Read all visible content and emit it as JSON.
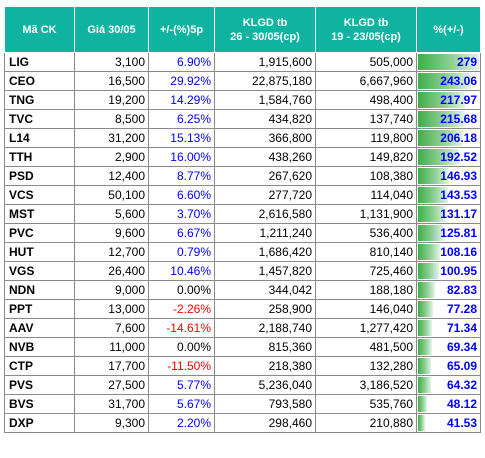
{
  "headers": {
    "code": "Mã CK",
    "price": "Giá 30/05",
    "change": "+/-(%)5p",
    "vol1_line1": "KLGD tb",
    "vol1_line2": "26 - 30/05(cp)",
    "vol2_line1": "KLGD tb",
    "vol2_line2": "19 - 23/05(cp)",
    "ratio": "%(+/-)"
  },
  "colors": {
    "header_bg": "#0fb4a1",
    "positive": "#0000ff",
    "negative": "#ff0000",
    "bar": "#3fae48"
  },
  "bar_max": 279,
  "rows": [
    {
      "code": "LIG",
      "price": "3,100",
      "change": "6.90%",
      "sign": "pos",
      "vol1": "1,915,600",
      "vol2": "505,000",
      "ratio": "279",
      "ratio_value": 279
    },
    {
      "code": "CEO",
      "price": "16,500",
      "change": "29.92%",
      "sign": "pos",
      "vol1": "22,875,180",
      "vol2": "6,667,960",
      "ratio": "243.06",
      "ratio_value": 243.06
    },
    {
      "code": "TNG",
      "price": "19,200",
      "change": "14.29%",
      "sign": "pos",
      "vol1": "1,584,760",
      "vol2": "498,400",
      "ratio": "217.97",
      "ratio_value": 217.97
    },
    {
      "code": "TVC",
      "price": "8,500",
      "change": "6.25%",
      "sign": "pos",
      "vol1": "434,820",
      "vol2": "137,740",
      "ratio": "215.68",
      "ratio_value": 215.68
    },
    {
      "code": "L14",
      "price": "31,200",
      "change": "15.13%",
      "sign": "pos",
      "vol1": "366,800",
      "vol2": "119,800",
      "ratio": "206.18",
      "ratio_value": 206.18
    },
    {
      "code": "TTH",
      "price": "2,900",
      "change": "16.00%",
      "sign": "pos",
      "vol1": "438,260",
      "vol2": "149,820",
      "ratio": "192.52",
      "ratio_value": 192.52
    },
    {
      "code": "PSD",
      "price": "12,400",
      "change": "8.77%",
      "sign": "pos",
      "vol1": "267,620",
      "vol2": "108,380",
      "ratio": "146.93",
      "ratio_value": 146.93
    },
    {
      "code": "VCS",
      "price": "50,100",
      "change": "6.60%",
      "sign": "pos",
      "vol1": "277,720",
      "vol2": "114,040",
      "ratio": "143.53",
      "ratio_value": 143.53
    },
    {
      "code": "MST",
      "price": "5,600",
      "change": "3.70%",
      "sign": "pos",
      "vol1": "2,616,580",
      "vol2": "1,131,900",
      "ratio": "131.17",
      "ratio_value": 131.17
    },
    {
      "code": "PVC",
      "price": "9,600",
      "change": "6.67%",
      "sign": "pos",
      "vol1": "1,211,240",
      "vol2": "536,400",
      "ratio": "125.81",
      "ratio_value": 125.81
    },
    {
      "code": "HUT",
      "price": "12,700",
      "change": "0.79%",
      "sign": "pos",
      "vol1": "1,686,420",
      "vol2": "810,140",
      "ratio": "108.16",
      "ratio_value": 108.16
    },
    {
      "code": "VGS",
      "price": "26,400",
      "change": "10.46%",
      "sign": "pos",
      "vol1": "1,457,820",
      "vol2": "725,460",
      "ratio": "100.95",
      "ratio_value": 100.95
    },
    {
      "code": "NDN",
      "price": "9,000",
      "change": "0.00%",
      "sign": "zero",
      "vol1": "344,042",
      "vol2": "188,180",
      "ratio": "82.83",
      "ratio_value": 82.83
    },
    {
      "code": "PPT",
      "price": "13,000",
      "change": "-2.26%",
      "sign": "neg",
      "vol1": "258,900",
      "vol2": "146,040",
      "ratio": "77.28",
      "ratio_value": 77.28
    },
    {
      "code": "AAV",
      "price": "7,600",
      "change": "-14.61%",
      "sign": "neg",
      "vol1": "2,188,740",
      "vol2": "1,277,420",
      "ratio": "71.34",
      "ratio_value": 71.34
    },
    {
      "code": "NVB",
      "price": "11,000",
      "change": "0.00%",
      "sign": "zero",
      "vol1": "815,360",
      "vol2": "481,500",
      "ratio": "69.34",
      "ratio_value": 69.34
    },
    {
      "code": "CTP",
      "price": "17,700",
      "change": "-11.50%",
      "sign": "neg",
      "vol1": "218,380",
      "vol2": "132,280",
      "ratio": "65.09",
      "ratio_value": 65.09
    },
    {
      "code": "PVS",
      "price": "27,500",
      "change": "5.77%",
      "sign": "pos",
      "vol1": "5,236,040",
      "vol2": "3,186,520",
      "ratio": "64.32",
      "ratio_value": 64.32
    },
    {
      "code": "BVS",
      "price": "31,700",
      "change": "5.67%",
      "sign": "pos",
      "vol1": "793,580",
      "vol2": "535,760",
      "ratio": "48.12",
      "ratio_value": 48.12
    },
    {
      "code": "DXP",
      "price": "9,300",
      "change": "2.20%",
      "sign": "pos",
      "vol1": "298,460",
      "vol2": "210,880",
      "ratio": "41.53",
      "ratio_value": 41.53
    }
  ]
}
